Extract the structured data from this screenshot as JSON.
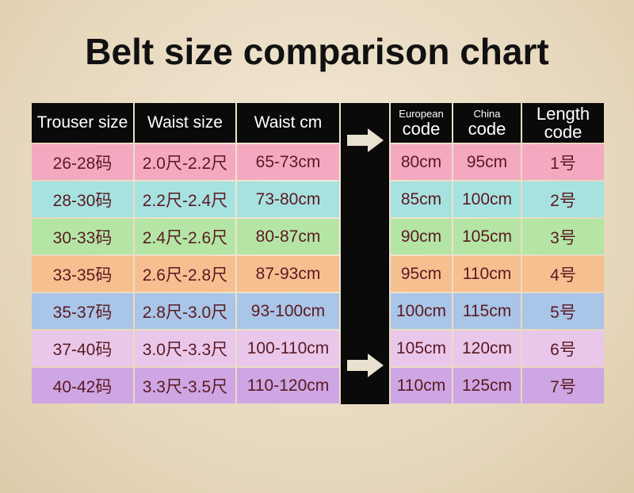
{
  "title": "Belt size comparison chart",
  "chart_data": {
    "type": "table",
    "title": "Belt size comparison chart",
    "columns": [
      {
        "lines": [
          "Trouser size"
        ]
      },
      {
        "lines": [
          "Waist size"
        ]
      },
      {
        "lines": [
          "Waist cm"
        ]
      },
      {
        "lines": [
          "European",
          "code"
        ]
      },
      {
        "lines": [
          "China",
          "code"
        ]
      },
      {
        "lines": [
          "Length",
          "code"
        ]
      }
    ],
    "rows": [
      {
        "color": "#f4a9c0",
        "cells": [
          "26-28码",
          "2.0尺-2.2尺",
          "65-73cm",
          "80cm",
          "95cm",
          "1号"
        ]
      },
      {
        "color": "#a6e2e0",
        "cells": [
          "28-30码",
          "2.2尺-2.4尺",
          "73-80cm",
          "85cm",
          "100cm",
          "2号"
        ]
      },
      {
        "color": "#b4e5a5",
        "cells": [
          "30-33码",
          "2.4尺-2.6尺",
          "80-87cm",
          "90cm",
          "105cm",
          "3号"
        ]
      },
      {
        "color": "#f6bf90",
        "cells": [
          "33-35码",
          "2.6尺-2.8尺",
          "87-93cm",
          "95cm",
          "110cm",
          "4号"
        ]
      },
      {
        "color": "#a9c5e7",
        "cells": [
          "35-37码",
          "2.8尺-3.0尺",
          "93-100cm",
          "100cm",
          "115cm",
          "5号"
        ]
      },
      {
        "color": "#e9c7ea",
        "cells": [
          "37-40码",
          "3.0尺-3.3尺",
          "100-110cm",
          "105cm",
          "120cm",
          "6号"
        ]
      },
      {
        "color": "#cea6e3",
        "cells": [
          "40-42码",
          "3.3尺-3.5尺",
          "110-120cm",
          "110cm",
          "125cm",
          "7号"
        ]
      }
    ],
    "icons": [
      "arrow-right-icon",
      "arrow-right-icon"
    ]
  }
}
